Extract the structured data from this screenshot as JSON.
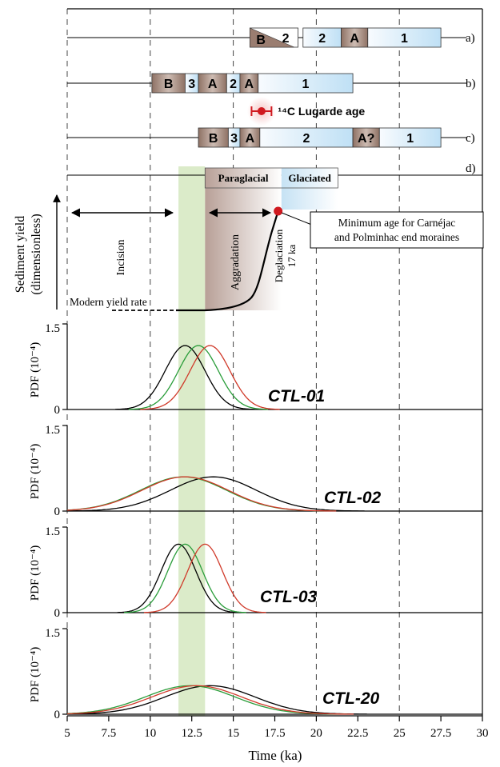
{
  "chart_data": {
    "type": "line",
    "x_axis": {
      "label": "Time (ka)",
      "ticks": [
        "5",
        "7.5",
        "10",
        "12.5",
        "15",
        "17.5",
        "20",
        "22.5",
        "25",
        "27.5",
        "30"
      ],
      "range": [
        5,
        30
      ]
    },
    "highlight_band_ka": [
      11.7,
      13.3
    ],
    "timelines": [
      {
        "label": "a)",
        "segments": [
          {
            "from": 16,
            "to": 18.9,
            "text": "B",
            "text2": "2",
            "style": "wedge"
          },
          {
            "from": 19.2,
            "to": 21.5,
            "text": "2",
            "style": "blue"
          },
          {
            "from": 21.5,
            "to": 23.1,
            "text": "A",
            "style": "brown"
          },
          {
            "from": 23.1,
            "to": 27.5,
            "text": "1",
            "style": "blue"
          }
        ]
      },
      {
        "label": "b)",
        "segments": [
          {
            "from": 10.1,
            "to": 12.1,
            "text": "B",
            "style": "brown"
          },
          {
            "from": 12.1,
            "to": 12.9,
            "text": "3",
            "style": "blue"
          },
          {
            "from": 12.9,
            "to": 14.6,
            "text": "A",
            "style": "brown"
          },
          {
            "from": 14.6,
            "to": 15.4,
            "text": "2",
            "style": "blue"
          },
          {
            "from": 15.4,
            "to": 16.5,
            "text": "A",
            "style": "brown"
          },
          {
            "from": 16.5,
            "to": 22.2,
            "text": "1",
            "style": "blue"
          }
        ]
      },
      {
        "label": "c)",
        "segments": [
          {
            "from": 12.9,
            "to": 14.7,
            "text": "B",
            "style": "brown"
          },
          {
            "from": 14.7,
            "to": 15.4,
            "text": "3",
            "style": "blue"
          },
          {
            "from": 15.4,
            "to": 16.6,
            "text": "A",
            "style": "brown"
          },
          {
            "from": 16.6,
            "to": 22.2,
            "text": "2",
            "style": "blue"
          },
          {
            "from": 22.2,
            "to": 23.8,
            "text": "A?",
            "style": "brown"
          },
          {
            "from": 23.8,
            "to": 27.5,
            "text": "1",
            "style": "blue"
          }
        ]
      }
    ],
    "c14": {
      "label": "¹⁴C Lugarde age",
      "age_ka": 16.7,
      "min_ka": 16.1,
      "max_ka": 17.3
    },
    "panel_d": {
      "label": "d)",
      "ylabel_line1": "Sediment yield",
      "ylabel_line2": "(dimensionless)",
      "phases": {
        "paraglacial": "Paraglacial",
        "glaciated": "Glaciated"
      },
      "phase_ranges_ka": {
        "paraglacial": [
          13.3,
          17.9
        ],
        "glaciated": [
          17.9,
          21.3
        ]
      },
      "annotations": {
        "incision": "Incision",
        "aggradation": "Aggradation",
        "deglaciation": "Deglaciation",
        "deglaciation_age": "17 ka",
        "modern": "Modern yield rate",
        "callout_line1": "Minimum age for Carnéjac",
        "callout_line2": "and Polminhac end moraines"
      },
      "deglaciation_point_ka": 17.7
    },
    "pdf_panels": [
      {
        "name": "CTL-01",
        "ylabel": "PDF (10⁻⁴)",
        "yticks": [
          "0",
          "1.5"
        ],
        "ylim": [
          0,
          1.5
        ],
        "series": [
          {
            "color": "#000000",
            "mean": 12.1,
            "sd": 1.2,
            "peak": 1.12
          },
          {
            "color": "#2a9d3a",
            "mean": 12.9,
            "sd": 1.2,
            "peak": 1.12
          },
          {
            "color": "#d03a2a",
            "mean": 13.6,
            "sd": 1.2,
            "peak": 1.12
          }
        ]
      },
      {
        "name": "CTL-02",
        "ylabel": "PDF (10⁻⁴)",
        "yticks": [
          "0",
          "1.5"
        ],
        "ylim": [
          0,
          1.5
        ],
        "series": [
          {
            "color": "#000000",
            "mean": 13.8,
            "sd": 2.6,
            "peak": 0.6
          },
          {
            "color": "#2a9d3a",
            "mean": 12.0,
            "sd": 2.6,
            "peak": 0.6
          },
          {
            "color": "#d03a2a",
            "mean": 12.1,
            "sd": 2.6,
            "peak": 0.6
          }
        ]
      },
      {
        "name": "CTL-03",
        "ylabel": "PDF (10⁻⁴)",
        "yticks": [
          "0",
          "1.5"
        ],
        "ylim": [
          0,
          1.5
        ],
        "series": [
          {
            "color": "#000000",
            "mean": 11.7,
            "sd": 1.05,
            "peak": 1.2
          },
          {
            "color": "#2a9d3a",
            "mean": 12.1,
            "sd": 1.05,
            "peak": 1.2
          },
          {
            "color": "#d03a2a",
            "mean": 13.3,
            "sd": 1.05,
            "peak": 1.2
          }
        ]
      },
      {
        "name": "CTL-20",
        "ylabel": "PDF (10⁻⁴)",
        "yticks": [
          "0",
          "1.5"
        ],
        "ylim": [
          0,
          1.5
        ],
        "series": [
          {
            "color": "#000000",
            "mean": 13.6,
            "sd": 2.7,
            "peak": 0.5
          },
          {
            "color": "#2a9d3a",
            "mean": 12.4,
            "sd": 2.7,
            "peak": 0.5
          },
          {
            "color": "#d03a2a",
            "mean": 12.8,
            "sd": 2.7,
            "peak": 0.5
          }
        ]
      }
    ]
  }
}
